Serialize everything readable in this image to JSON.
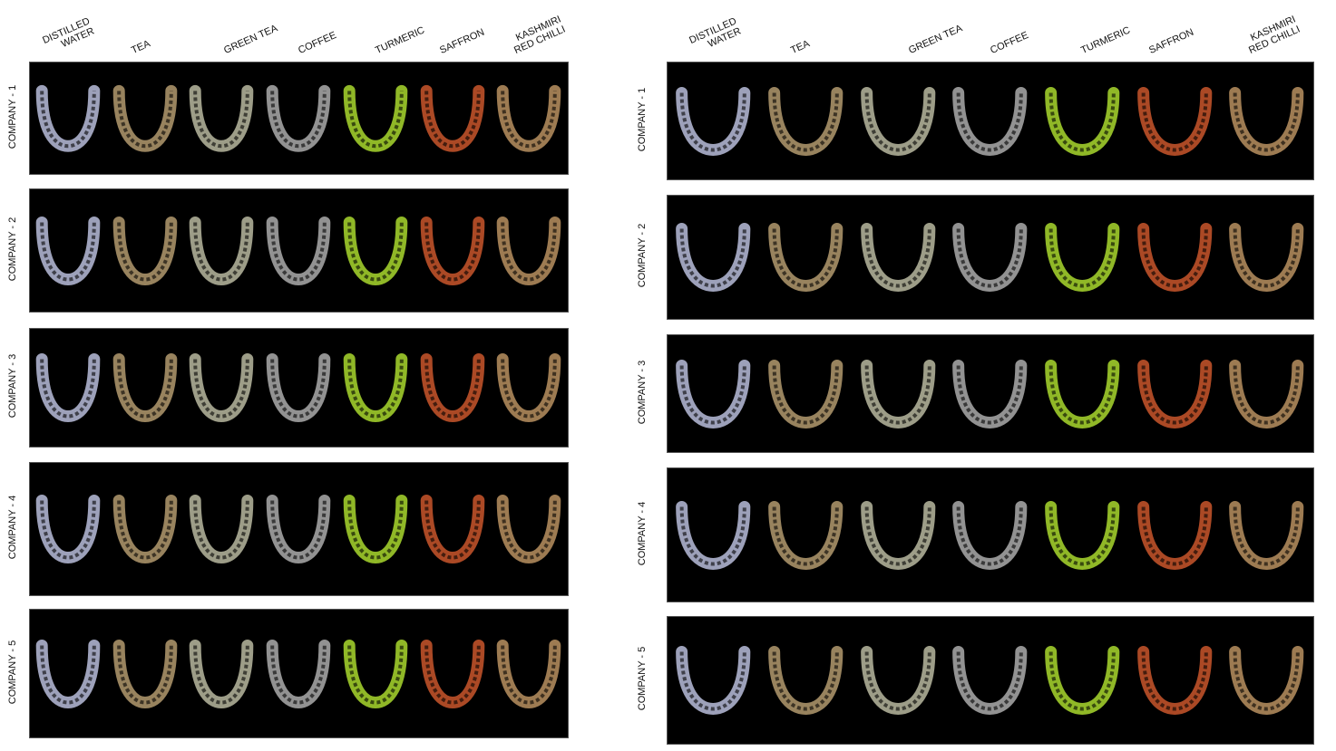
{
  "figures": [
    {
      "columns": [
        "DISTILLED\nWATER",
        "TEA",
        "GREEN TEA",
        "COFFEE",
        "TURMERIC",
        "SAFFRON",
        "KASHMIRI\nRED CHILLI"
      ],
      "rows": [
        "COMPANY - 1",
        "COMPANY - 2",
        "COMPANY - 3",
        "COMPANY - 4",
        "COMPANY - 5"
      ]
    },
    {
      "columns": [
        "DISTILLED\nWATER",
        "TEA",
        "GREEN TEA",
        "COFFEE",
        "TURMERIC",
        "SAFFRON",
        "KASHMIRI\nRED CHILLI"
      ],
      "rows": [
        "COMPANY - 1",
        "COMPANY - 2",
        "COMPANY - 3",
        "COMPANY - 4",
        "COMPANY - 5"
      ]
    }
  ],
  "stain_colors": {
    "distilled_water": "#b9bddb",
    "tea": "#b39a6e",
    "green_tea": "#b9b9a0",
    "coffee": "#ababab",
    "turmeric": "#a9d82e",
    "saffron": "#c9562b",
    "kashmiri_red_chilli": "#b99160"
  },
  "panel_background": "#000000"
}
